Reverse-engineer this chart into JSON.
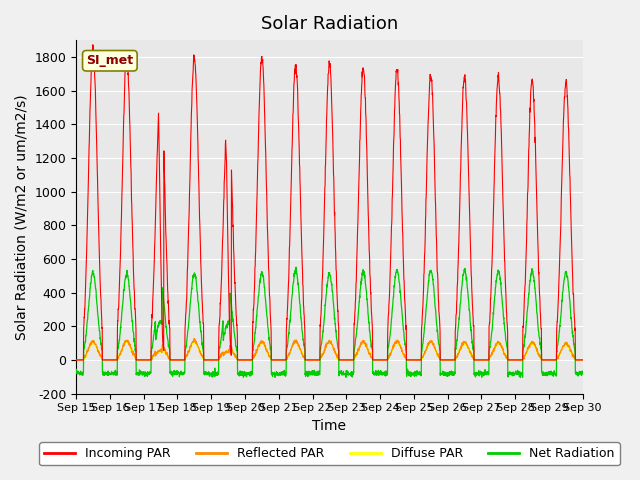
{
  "title": "Solar Radiation",
  "ylabel": "Solar Radiation (W/m2 or um/m2/s)",
  "xlabel": "Time",
  "xlim_start": 0,
  "xlim_end": 15,
  "ylim": [
    -200,
    1900
  ],
  "yticks": [
    -200,
    0,
    200,
    400,
    600,
    800,
    1000,
    1200,
    1400,
    1600,
    1800
  ],
  "xtick_labels": [
    "Sep 15",
    "Sep 16",
    "Sep 17",
    "Sep 18",
    "Sep 19",
    "Sep 20",
    "Sep 21",
    "Sep 22",
    "Sep 23",
    "Sep 24",
    "Sep 25",
    "Sep 26",
    "Sep 27",
    "Sep 28",
    "Sep 29",
    "Sep 30"
  ],
  "legend_label": "SI_met",
  "line_colors": {
    "incoming": "#ff0000",
    "reflected": "#ff8c00",
    "diffuse": "#ffff00",
    "net": "#00cc00"
  },
  "legend_entries": [
    "Incoming PAR",
    "Reflected PAR",
    "Diffuse PAR",
    "Net Radiation"
  ],
  "background_color": "#e8e8e8",
  "grid_color": "#ffffff",
  "title_fontsize": 13,
  "axis_fontsize": 10,
  "tick_fontsize": 9,
  "n_days": 16,
  "incoming_peaks": [
    1850,
    1800,
    1640,
    1800,
    1530,
    1800,
    1750,
    1760,
    1730,
    1730,
    1690,
    1680,
    1680,
    1660,
    1650,
    1640
  ],
  "incoming_cloudy": [
    0,
    0,
    1380,
    0,
    1200,
    0,
    0,
    0,
    0,
    0,
    0,
    0,
    0,
    0,
    0,
    0
  ],
  "net_peaks": [
    520,
    510,
    460,
    510,
    440,
    515,
    530,
    510,
    520,
    530,
    535,
    530,
    525,
    525,
    520,
    510
  ],
  "reflected_peaks": [
    110,
    115,
    95,
    115,
    90,
    110,
    110,
    110,
    110,
    110,
    110,
    105,
    105,
    105,
    100,
    100
  ],
  "diffuse_peaks": [
    110,
    115,
    95,
    115,
    90,
    110,
    110,
    110,
    110,
    110,
    110,
    105,
    105,
    105,
    100,
    100
  ],
  "net_night": -80,
  "pts_per_day": 144
}
